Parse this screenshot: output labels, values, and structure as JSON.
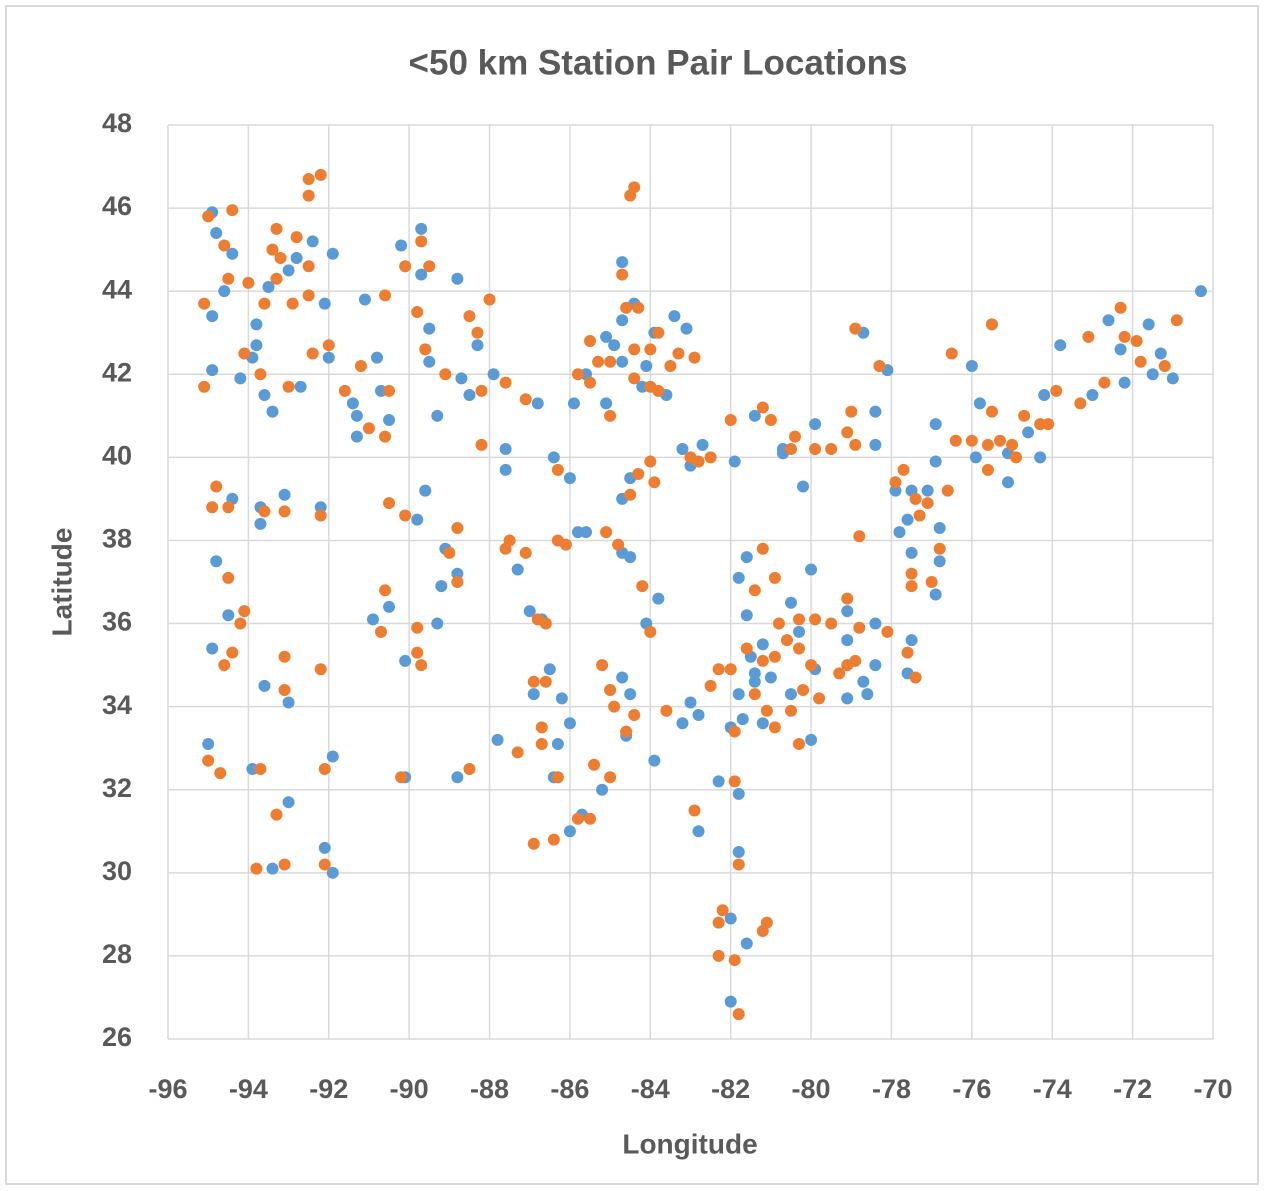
{
  "chart_data": {
    "type": "scatter",
    "title": "<50 km Station Pair Locations",
    "x_label": "Longitude",
    "y_label": "Latitude",
    "xlim": [
      -96,
      -70
    ],
    "xticks": [
      -96,
      -94,
      -92,
      -90,
      -88,
      -86,
      -84,
      -82,
      -80,
      -78,
      -76,
      -74,
      -72,
      -70
    ],
    "ylim": [
      26,
      48
    ],
    "yticks": [
      26,
      28,
      30,
      32,
      34,
      36,
      38,
      40,
      42,
      44,
      46,
      48
    ],
    "grid": true,
    "series": [
      {
        "color": "#5b9bd5",
        "x": [
          -94.9,
          -94.8,
          -94.6,
          -94.4,
          -94.9,
          -94.9,
          -93.8,
          -93.8,
          -93.9,
          -94.2,
          -93.6,
          -93.4,
          -92.7,
          -93.5,
          -92.8,
          -92.4,
          -93.0,
          -91.9,
          -92.1,
          -92.0,
          -91.1,
          -90.8,
          -90.7,
          -90.5,
          -91.4,
          -91.3,
          -91.3,
          -90.2,
          -89.7,
          -89.7,
          -89.5,
          -89.5,
          -88.8,
          -88.7,
          -88.5,
          -88.3,
          -87.9,
          -89.3,
          -89.8,
          -89.6,
          -89.1,
          -89.2,
          -89.3,
          -90.5,
          -90.9,
          -90.1,
          -93.7,
          -93.7,
          -93.1,
          -94.4,
          -94.8,
          -94.5,
          -94.9,
          -93.6,
          -93.0,
          -93.9,
          -93.0,
          -93.4,
          -92.1,
          -91.9,
          -91.9,
          -95.0,
          -92.2,
          -90.1,
          -88.8,
          -88.8,
          -87.6,
          -87.6,
          -87.3,
          -87.0,
          -86.7,
          -86.9,
          -86.5,
          -86.2,
          -86.3,
          -86.0,
          -86.0,
          -86.4,
          -85.7,
          -85.2,
          -84.7,
          -84.5,
          -84.6,
          -84.5,
          -84.7,
          -84.7,
          -84.5,
          -84.1,
          -83.8,
          -83.9,
          -83.2,
          -82.8,
          -82.8,
          -83.0,
          -82.3,
          -81.8,
          -81.8,
          -82.0,
          -82.0,
          -81.6,
          -82.0,
          -81.7,
          -81.8,
          -81.4,
          -81.0,
          -80.5,
          -80.0,
          -79.9,
          -79.1,
          -78.6,
          -78.7,
          -78.4,
          -78.4,
          -79.1,
          -79.1,
          -80.0,
          -80.5,
          -80.3,
          -81.6,
          -81.6,
          -81.8,
          -81.2,
          -81.5,
          -81.4,
          -81.2,
          -81.9,
          -81.4,
          -80.7,
          -80.2,
          -79.9,
          -78.4,
          -78.4,
          -78.1,
          -78.7,
          -82.7,
          -83.2,
          -83.0,
          -83.4,
          -83.1,
          -83.9,
          -84.1,
          -84.2,
          -83.6,
          -84.4,
          -84.7,
          -84.7,
          -84.9,
          -85.6,
          -85.9,
          -85.1,
          -85.1,
          -84.7,
          -86.0,
          -86.4,
          -85.8,
          -85.6,
          -87.8,
          -86.8,
          -77.9,
          -77.6,
          -77.5,
          -77.1,
          -76.8,
          -76.8,
          -76.9,
          -77.5,
          -77.5,
          -77.6,
          -77.8,
          -76.9,
          -76.9,
          -76.0,
          -75.5,
          -75.8,
          -75.9,
          -75.1,
          -75.1,
          -74.6,
          -74.3,
          -74.2,
          -73.8,
          -72.6,
          -72.3,
          -72.2,
          -71.6,
          -71.5,
          -71.3,
          -71.0,
          -70.3,
          -73.0,
          -80.7
        ],
        "values": [
          45.9,
          45.4,
          44.0,
          44.9,
          43.4,
          42.1,
          43.2,
          42.7,
          42.4,
          41.9,
          41.5,
          41.1,
          41.7,
          44.1,
          44.8,
          45.2,
          44.5,
          44.9,
          43.7,
          42.4,
          43.8,
          42.4,
          41.6,
          40.9,
          41.3,
          41.0,
          40.5,
          45.1,
          45.5,
          44.4,
          43.1,
          42.3,
          44.3,
          41.9,
          41.5,
          42.7,
          42.0,
          41.0,
          38.5,
          39.2,
          37.8,
          36.9,
          36.0,
          36.4,
          36.1,
          35.1,
          38.8,
          38.4,
          39.1,
          39.0,
          37.5,
          36.2,
          35.4,
          34.5,
          34.1,
          32.5,
          31.7,
          30.1,
          30.6,
          30.0,
          32.8,
          33.1,
          38.8,
          32.3,
          32.3,
          37.2,
          40.2,
          39.7,
          37.3,
          36.3,
          36.1,
          34.3,
          34.9,
          34.2,
          33.1,
          33.6,
          31.0,
          32.3,
          31.4,
          32.0,
          34.7,
          34.3,
          33.3,
          37.6,
          37.7,
          39.0,
          39.5,
          36.0,
          36.6,
          32.7,
          33.6,
          33.8,
          31.0,
          34.1,
          32.2,
          31.9,
          30.5,
          28.9,
          26.9,
          28.3,
          33.5,
          33.7,
          34.3,
          34.8,
          34.7,
          34.3,
          33.2,
          34.9,
          34.2,
          34.3,
          34.6,
          35.0,
          36.0,
          35.6,
          36.3,
          37.3,
          36.5,
          35.8,
          36.2,
          37.6,
          37.1,
          35.5,
          35.2,
          34.6,
          33.6,
          39.9,
          41.0,
          40.2,
          39.3,
          40.8,
          41.1,
          40.3,
          42.1,
          43.0,
          40.3,
          40.2,
          39.8,
          43.4,
          43.1,
          43.0,
          42.2,
          41.7,
          41.5,
          43.7,
          44.7,
          43.3,
          42.7,
          42.0,
          41.3,
          41.3,
          42.9,
          42.3,
          39.5,
          40.0,
          38.2,
          38.2,
          33.2,
          41.3,
          39.2,
          38.5,
          39.2,
          39.2,
          38.3,
          37.5,
          36.7,
          37.7,
          35.6,
          34.8,
          38.2,
          40.8,
          39.9,
          42.2,
          43.2,
          41.3,
          40.0,
          40.1,
          39.4,
          40.6,
          40.0,
          41.5,
          42.7,
          43.3,
          42.6,
          41.8,
          43.2,
          42.0,
          42.5,
          41.9,
          44.0,
          41.5,
          40.1
        ]
      },
      {
        "color": "#ed7d31",
        "x": [
          -95.0,
          -94.4,
          -94.6,
          -94.5,
          -94.0,
          -93.3,
          -93.4,
          -93.2,
          -93.3,
          -92.5,
          -92.2,
          -92.5,
          -92.8,
          -92.5,
          -93.6,
          -92.9,
          -92.5,
          -95.1,
          -94.1,
          -93.7,
          -93.0,
          -92.4,
          -92.0,
          -91.6,
          -91.2,
          -91.0,
          -90.6,
          -90.5,
          -90.6,
          -90.1,
          -89.7,
          -89.5,
          -89.8,
          -89.6,
          -89.1,
          -88.5,
          -88.3,
          -88.0,
          -88.2,
          -87.6,
          -88.2,
          -87.1,
          -95.1,
          -94.8,
          -94.9,
          -94.5,
          -94.5,
          -94.1,
          -94.2,
          -94.4,
          -94.6,
          -93.6,
          -93.1,
          -93.1,
          -93.1,
          -92.2,
          -92.2,
          -90.5,
          -90.1,
          -90.6,
          -90.7,
          -89.8,
          -89.7,
          -89.8,
          -88.8,
          -89.0,
          -88.8,
          -90.2,
          -88.5,
          -93.7,
          -93.3,
          -93.8,
          -93.1,
          -92.1,
          -92.1,
          -94.7,
          -95.0,
          -87.6,
          -87.5,
          -87.1,
          -86.8,
          -86.6,
          -86.9,
          -86.6,
          -86.7,
          -86.7,
          -87.3,
          -86.9,
          -86.4,
          -86.3,
          -85.8,
          -85.5,
          -85.4,
          -85.0,
          -85.2,
          -84.9,
          -84.6,
          -84.4,
          -85.0,
          -84.8,
          -85.1,
          -84.5,
          -84.3,
          -83.9,
          -84.0,
          -84.2,
          -84.0,
          -83.6,
          -82.9,
          -82.5,
          -82.3,
          -82.0,
          -81.9,
          -81.4,
          -81.2,
          -80.9,
          -80.6,
          -80.3,
          -80.0,
          -79.8,
          -80.2,
          -80.5,
          -80.3,
          -80.9,
          -81.1,
          -80.8,
          -80.3,
          -79.9,
          -79.5,
          -79.1,
          -79.1,
          -78.9,
          -78.8,
          -79.3,
          -80.9,
          -81.2,
          -81.4,
          -81.6,
          -81.0,
          -81.2,
          -82.0,
          -80.5,
          -80.4,
          -79.9,
          -79.5,
          -79.1,
          -78.9,
          -79.0,
          -78.9,
          -78.3,
          -82.5,
          -82.8,
          -83.0,
          -83.5,
          -83.8,
          -84.0,
          -84.3,
          -84.6,
          -84.7,
          -84.5,
          -84.4,
          -85.0,
          -85.3,
          -85.5,
          -85.8,
          -85.5,
          -85.0,
          -84.4,
          -84.4,
          -84.0,
          -83.8,
          -83.3,
          -82.9,
          -86.1,
          -86.3,
          -86.3,
          -82.2,
          -82.3,
          -82.3,
          -81.9,
          -81.8,
          -81.8,
          -81.9,
          -81.2,
          -81.1,
          -77.9,
          -77.7,
          -77.4,
          -77.3,
          -77.5,
          -77.5,
          -77.1,
          -76.8,
          -77.0,
          -76.6,
          -77.6,
          -77.4,
          -78.1,
          -78.8,
          -76.4,
          -76.0,
          -75.6,
          -75.3,
          -75.0,
          -74.9,
          -75.6,
          -75.5,
          -74.7,
          -74.3,
          -74.1,
          -73.9,
          -73.1,
          -73.3,
          -72.7,
          -72.3,
          -72.2,
          -71.9,
          -71.8,
          -71.2,
          -70.9,
          -76.5,
          -75.5
        ],
        "values": [
          45.8,
          45.95,
          45.1,
          44.3,
          44.2,
          45.5,
          45.0,
          44.8,
          44.3,
          46.7,
          46.8,
          46.3,
          45.3,
          44.6,
          43.7,
          43.7,
          43.9,
          43.7,
          42.5,
          42.0,
          41.7,
          42.5,
          42.7,
          41.6,
          42.2,
          40.7,
          40.5,
          41.6,
          43.9,
          44.6,
          45.2,
          44.6,
          43.5,
          42.6,
          42.0,
          43.4,
          43.0,
          43.8,
          41.6,
          41.8,
          40.3,
          41.4,
          41.7,
          39.3,
          38.8,
          38.8,
          37.1,
          36.3,
          36.0,
          35.3,
          35.0,
          38.7,
          38.7,
          35.2,
          34.4,
          34.9,
          38.6,
          38.9,
          38.6,
          36.8,
          35.8,
          35.9,
          35.0,
          35.3,
          38.3,
          37.7,
          37.0,
          32.3,
          32.5,
          32.5,
          31.4,
          30.1,
          30.2,
          30.2,
          32.5,
          32.4,
          32.7,
          37.8,
          38.0,
          37.7,
          36.1,
          36.0,
          34.6,
          34.6,
          33.5,
          33.1,
          32.9,
          30.7,
          30.8,
          32.3,
          31.3,
          31.3,
          32.6,
          32.3,
          35.0,
          34.0,
          33.4,
          33.8,
          34.4,
          37.9,
          38.2,
          39.1,
          39.6,
          39.4,
          39.9,
          36.9,
          35.8,
          33.9,
          31.5,
          34.5,
          34.9,
          34.9,
          33.4,
          34.3,
          35.1,
          35.2,
          35.6,
          35.4,
          35.0,
          34.2,
          34.4,
          33.9,
          33.1,
          33.5,
          33.9,
          36.0,
          36.1,
          36.1,
          36.0,
          36.6,
          35.0,
          35.1,
          35.9,
          34.8,
          37.1,
          37.8,
          36.8,
          35.4,
          40.9,
          41.2,
          40.9,
          40.2,
          40.5,
          40.2,
          40.2,
          40.6,
          40.3,
          41.1,
          43.1,
          42.2,
          40.0,
          39.9,
          40.0,
          42.2,
          43.0,
          42.6,
          43.6,
          43.6,
          44.4,
          46.3,
          46.5,
          42.3,
          42.3,
          42.8,
          42.0,
          41.8,
          41.0,
          42.6,
          41.9,
          41.7,
          41.6,
          42.5,
          42.4,
          37.9,
          38.0,
          39.7,
          29.1,
          28.8,
          28.0,
          27.9,
          26.6,
          30.2,
          32.2,
          28.6,
          28.8,
          39.4,
          39.7,
          39.0,
          38.6,
          37.2,
          36.9,
          38.9,
          37.8,
          37.0,
          39.2,
          35.3,
          34.7,
          35.8,
          38.1,
          40.4,
          40.4,
          40.3,
          40.4,
          40.3,
          40.0,
          39.7,
          41.1,
          41.0,
          40.8,
          40.8,
          41.6,
          42.9,
          41.3,
          41.8,
          43.6,
          42.9,
          42.8,
          42.3,
          42.2,
          43.3,
          42.5,
          43.2
        ]
      }
    ]
  }
}
